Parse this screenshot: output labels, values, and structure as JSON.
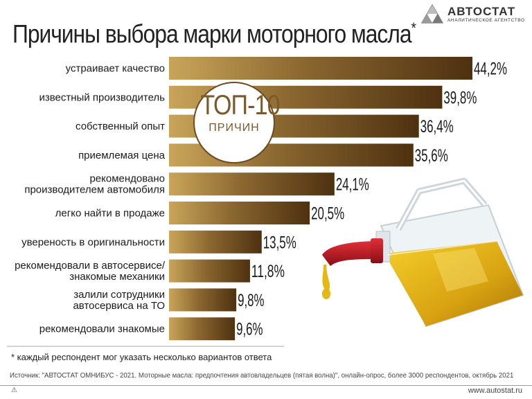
{
  "logo": {
    "name": "АВТОСТАТ",
    "subtitle": "АНАЛИТИЧЕСКОЕ АГЕНТСТВО"
  },
  "title": "Причины выбора марки моторного масла",
  "title_mark": "*",
  "badge": {
    "big": "ТОП-10",
    "small": "ПРИЧИН"
  },
  "footnote": "* каждый респондент мог указать несколько вариантов ответа",
  "source": "Источник: \"АВТОСТАТ ОМНИБУС - 2021. Моторные масла: предпочтения автовладельцев (пятая волна)\", онлайн-опрос, более 3000 респондентов, октябрь 2021",
  "url": "www.autostat.ru",
  "colors": {
    "bar_dark": "#5a3a14",
    "bar_light": "#c9a55a",
    "text": "#1a1a1a"
  },
  "chart_data": {
    "type": "bar",
    "orientation": "horizontal",
    "categories": [
      "устраивает качество",
      "известный производитель",
      "собственный опыт",
      "приемлемая цена",
      "рекомендовано\nпроизводителем автомобиля",
      "легко найти в продаже",
      "увереность в оригинальности",
      "рекомендовали в автосервисе/\nзнакомые механики",
      "залили сотрудники\nавтосервиса на ТО",
      "рекомендовали знакомые"
    ],
    "values": [
      44.2,
      39.8,
      36.4,
      35.6,
      24.1,
      20.5,
      13.5,
      11.8,
      9.8,
      9.6
    ],
    "value_labels": [
      "44,2%",
      "39,8%",
      "36,4%",
      "35,6%",
      "24,1%",
      "20,5%",
      "13,5%",
      "11,8%",
      "9,8%",
      "9,6%"
    ],
    "xlim": [
      0,
      44.2
    ],
    "grid": false,
    "legend": "none"
  }
}
